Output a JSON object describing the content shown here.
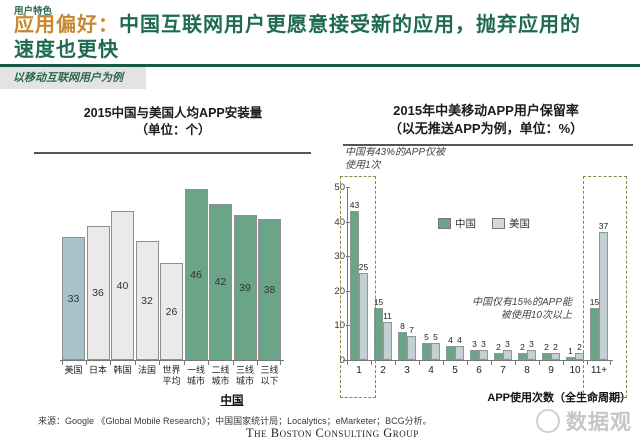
{
  "header": {
    "eyebrow": "用户特色",
    "title_prefix": "应用偏好：",
    "title_line1": "中国互联网用户更愿意接受新的应用，抛弃应用的",
    "title_line2": "速度也更快",
    "band_label": "以移动互联网用户为例"
  },
  "colors": {
    "title_green": "#1e6b50",
    "accent_orange": "#c8872e",
    "china_green": "#6aa588",
    "us_blue": "#a8c2cc",
    "neutral_gray": "#eaeaea",
    "us_gray": "#c2d0d4",
    "dashed_box_olive": "#8e854a"
  },
  "chart_data": [
    {
      "type": "bar",
      "title": "2015中国与美国人均APP安装量",
      "subtitle": "（单位：个）",
      "categories": [
        "美国",
        "日本",
        "韩国",
        "法国",
        "世界平均",
        "一线城市",
        "二线城市",
        "三线城市",
        "三线以下"
      ],
      "values": [
        33,
        36,
        40,
        32,
        26,
        46,
        42,
        39,
        38
      ],
      "bar_styles": [
        "us",
        "neutral",
        "neutral",
        "neutral",
        "neutral",
        "china",
        "china",
        "china",
        "china"
      ],
      "group_label": "中国",
      "group_label_covers": [
        "一线城市",
        "二线城市",
        "三线城市",
        "三线以下"
      ],
      "value_labels": "inside-bars",
      "grid": false
    },
    {
      "type": "grouped-bar",
      "title": "2015年中美移动APP用户保留率",
      "subtitle": "（以无推送APP为例，单位：%）",
      "categories": [
        "1",
        "2",
        "3",
        "4",
        "5",
        "6",
        "7",
        "8",
        "9",
        "10",
        "11+"
      ],
      "series": [
        {
          "name": "中国",
          "values": [
            43,
            15,
            8,
            5,
            4,
            3,
            2,
            2,
            2,
            1,
            15
          ]
        },
        {
          "name": "美国",
          "values": [
            25,
            11,
            7,
            5,
            4,
            3,
            3,
            3,
            2,
            2,
            37
          ]
        }
      ],
      "ylim": [
        0,
        50
      ],
      "yticks": [
        0,
        10,
        20,
        30,
        40,
        50
      ],
      "xlabel": "APP使用次数（全生命周期）",
      "annotation_1_lines": [
        "中国有43%的APP仅被",
        "使用1次"
      ],
      "annotation_2_lines": [
        "中国仅有15%的APP能",
        "被使用10次以上"
      ],
      "highlighted_categories": [
        "1",
        "11+"
      ],
      "legend_position": "top-center",
      "grid": false
    }
  ],
  "footer": {
    "source": "来源：Google 《Global Mobile Research》；中国国家统计局；Localytics；eMarketer；BCG分析。",
    "bcg_logo": "The Boston Consulting Group",
    "watermark": "数据观"
  }
}
